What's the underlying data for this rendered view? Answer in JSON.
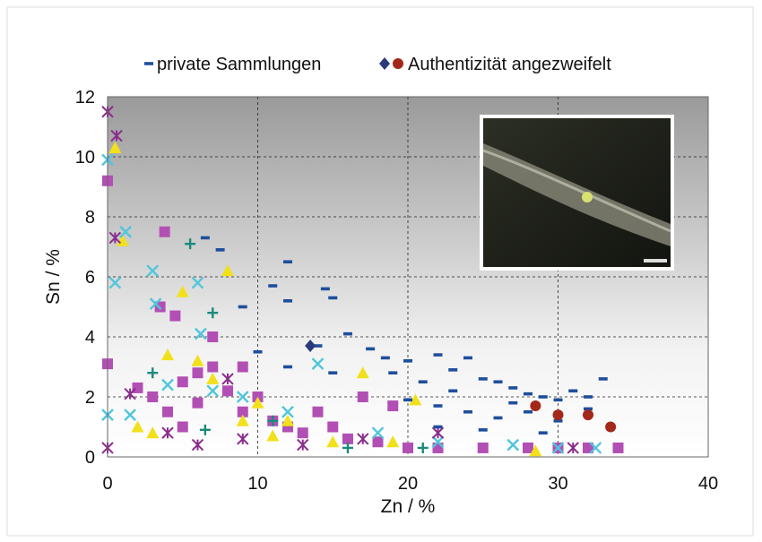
{
  "chart_data": {
    "type": "scatter",
    "x_label": "Zn / %",
    "y_label": "Sn / %",
    "xlim": [
      0,
      40
    ],
    "xticks": [
      0,
      10,
      20,
      30,
      40
    ],
    "ylim": [
      0,
      12
    ],
    "yticks": [
      0,
      2,
      4,
      6,
      8,
      10,
      12
    ],
    "grid": true,
    "series": [
      {
        "name": "private Sammlungen",
        "color": "#1f4e9c",
        "marker": "dash",
        "x": [
          6.5,
          7.5,
          12,
          11,
          12,
          14.5,
          15,
          9,
          16,
          17.5,
          14,
          18.5,
          20,
          22,
          24,
          19,
          21,
          23,
          25,
          26,
          27,
          28,
          29,
          30,
          31,
          32,
          33,
          20,
          22,
          24,
          26,
          28,
          30,
          32,
          22,
          25,
          29,
          23,
          27,
          10,
          12,
          15
        ],
        "values": [
          7.3,
          6.9,
          6.5,
          5.7,
          5.2,
          5.6,
          5.3,
          5.0,
          4.1,
          3.6,
          3.7,
          3.3,
          3.2,
          3.4,
          3.3,
          2.8,
          2.5,
          2.9,
          2.6,
          2.5,
          2.3,
          2.1,
          2.0,
          1.9,
          2.2,
          2.0,
          2.6,
          1.9,
          1.7,
          1.5,
          1.3,
          1.5,
          1.2,
          1.6,
          1.0,
          0.9,
          0.8,
          2.2,
          1.8,
          3.5,
          3.0,
          2.8
        ]
      },
      {
        "name": "Authentizität angezweifelt",
        "color": "#a3281a",
        "marker": "circle",
        "x": [
          28.5,
          30,
          32,
          33.5
        ],
        "values": [
          1.7,
          1.4,
          1.4,
          1.0
        ]
      },
      {
        "color": "#2a3a7a",
        "marker": "diamond",
        "x": [
          13.5
        ],
        "values": [
          3.7
        ]
      },
      {
        "color": "#b24fb4",
        "marker": "square",
        "x": [
          0,
          0,
          3.8,
          3.5,
          4.5,
          7,
          2,
          3,
          4,
          5,
          6,
          7,
          8,
          9,
          10,
          11,
          12,
          13,
          14,
          15,
          16,
          18,
          20,
          22,
          25,
          28,
          30,
          32,
          34,
          19,
          17,
          9,
          6,
          5
        ],
        "values": [
          9.2,
          3.1,
          7.5,
          5.0,
          4.7,
          4.0,
          2.3,
          2.0,
          1.5,
          2.5,
          1.8,
          3.0,
          2.2,
          1.5,
          2.0,
          1.2,
          1.0,
          0.8,
          1.5,
          1.0,
          0.6,
          0.5,
          0.3,
          0.3,
          0.3,
          0.3,
          0.3,
          0.3,
          0.3,
          1.7,
          2.0,
          3.0,
          2.8,
          1.0
        ]
      },
      {
        "color": "#f2e01a",
        "marker": "triangle",
        "x": [
          0.5,
          1,
          8,
          5,
          4,
          6,
          7,
          2,
          3,
          9,
          11,
          12,
          17,
          20.5,
          28.5,
          19,
          15,
          10
        ],
        "values": [
          10.3,
          7.2,
          6.2,
          5.5,
          3.4,
          3.2,
          2.6,
          1.0,
          0.8,
          1.2,
          0.7,
          1.2,
          2.8,
          1.9,
          0.2,
          0.5,
          0.5,
          1.8
        ]
      },
      {
        "color": "#4fc6dc",
        "marker": "x",
        "x": [
          0,
          1.2,
          0.5,
          3,
          6,
          3.2,
          6.2,
          14,
          0,
          1.5,
          4,
          7,
          9,
          12,
          18,
          22,
          27,
          30,
          32.5
        ],
        "values": [
          9.9,
          7.5,
          5.8,
          6.2,
          5.8,
          5.1,
          4.1,
          3.1,
          1.4,
          1.4,
          2.4,
          2.2,
          2.0,
          1.5,
          0.8,
          0.5,
          0.4,
          0.3,
          0.3
        ]
      },
      {
        "color": "#1a8a7a",
        "marker": "plus",
        "x": [
          5.5,
          7,
          3,
          6.5,
          11,
          16,
          21
        ],
        "values": [
          7.1,
          4.8,
          2.8,
          0.9,
          1.2,
          0.3,
          0.3
        ]
      },
      {
        "color": "#8a2c8c",
        "marker": "star",
        "x": [
          0,
          0.6,
          0.5,
          0,
          1.5,
          4,
          6,
          8,
          9,
          13,
          17,
          22,
          31
        ],
        "values": [
          11.5,
          10.7,
          7.3,
          0.3,
          2.1,
          0.8,
          0.4,
          2.6,
          0.6,
          0.4,
          0.6,
          0.8,
          0.3
        ]
      }
    ]
  }
}
